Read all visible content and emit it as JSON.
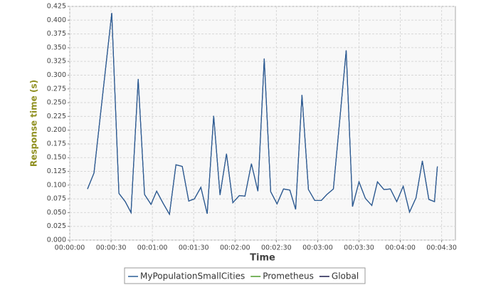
{
  "chart_data": {
    "type": "line",
    "y_label": "Response time (s)",
    "x_label": "Time",
    "x": [
      12.9,
      17.6,
      30.5,
      35.7,
      40.3,
      44.5,
      49.7,
      54.3,
      59.0,
      63.1,
      67.8,
      72.4,
      77.1,
      81.7,
      86.4,
      90.5,
      95.2,
      99.8,
      104.5,
      109.1,
      113.8,
      118.4,
      123.1,
      127.2,
      131.9,
      136.6,
      141.2,
      145.9,
      150.5,
      155.2,
      159.8,
      164.0,
      168.6,
      173.3,
      177.9,
      182.6,
      186.7,
      191.4,
      200.7,
      205.3,
      210.0,
      214.6,
      219.3,
      223.4,
      228.1,
      232.8,
      237.4,
      242.1,
      246.7,
      251.4,
      256.0,
      260.7,
      264.8,
      266.9
    ],
    "series": [
      {
        "name": "Global",
        "color": "#1a1a4a",
        "values": [
          0.093,
          0.122,
          0.413,
          0.085,
          0.07,
          0.05,
          0.293,
          0.083,
          0.065,
          0.089,
          0.067,
          0.047,
          0.137,
          0.134,
          0.071,
          0.075,
          0.096,
          0.048,
          0.226,
          0.082,
          0.157,
          0.068,
          0.081,
          0.08,
          0.139,
          0.089,
          0.33,
          0.088,
          0.066,
          0.093,
          0.091,
          0.056,
          0.264,
          0.092,
          0.072,
          0.072,
          0.083,
          0.093,
          0.345,
          0.061,
          0.106,
          0.076,
          0.063,
          0.106,
          0.092,
          0.093,
          0.07,
          0.098,
          0.051,
          0.077,
          0.144,
          0.074,
          0.07,
          0.134
        ]
      },
      {
        "name": "Prometheus",
        "color": "#4c9a2a",
        "values": [
          null,
          null,
          null,
          null,
          null,
          null,
          null,
          null,
          null,
          null,
          null,
          null,
          null,
          null,
          null,
          null,
          null,
          null,
          null,
          null,
          null,
          null,
          null,
          null,
          null,
          null,
          null,
          null,
          null,
          null,
          null,
          null,
          null,
          null,
          null,
          null,
          null,
          null,
          null,
          null,
          null,
          null,
          null,
          null,
          null,
          null,
          null,
          null,
          null,
          null,
          null,
          null,
          null,
          null
        ]
      },
      {
        "name": "MyPopulationSmallCities",
        "color": "#2a5d96",
        "values": [
          0.093,
          0.122,
          0.413,
          0.085,
          0.07,
          0.05,
          0.293,
          0.083,
          0.065,
          0.089,
          0.067,
          0.047,
          0.137,
          0.134,
          0.071,
          0.075,
          0.096,
          0.048,
          0.226,
          0.082,
          0.157,
          0.068,
          0.081,
          0.08,
          0.139,
          0.089,
          0.33,
          0.088,
          0.066,
          0.093,
          0.091,
          0.056,
          0.264,
          0.092,
          0.072,
          0.072,
          0.083,
          0.093,
          0.345,
          0.061,
          0.106,
          0.076,
          0.063,
          0.106,
          0.092,
          0.093,
          0.07,
          0.098,
          0.051,
          0.077,
          0.144,
          0.074,
          0.07,
          0.134
        ]
      }
    ],
    "legend_order": [
      2,
      1,
      0
    ],
    "xlim": [
      0,
      280
    ],
    "xticks": [
      {
        "value": 0,
        "label": "00:00:00"
      },
      {
        "value": 30,
        "label": "00:00:30"
      },
      {
        "value": 60,
        "label": "00:01:00"
      },
      {
        "value": 90,
        "label": "00:01:30"
      },
      {
        "value": 120,
        "label": "00:02:00"
      },
      {
        "value": 150,
        "label": "00:02:30"
      },
      {
        "value": 180,
        "label": "00:03:00"
      },
      {
        "value": 210,
        "label": "00:03:30"
      },
      {
        "value": 240,
        "label": "00:04:00"
      },
      {
        "value": 270,
        "label": "00:04:30"
      }
    ],
    "ylim": [
      0,
      0.425
    ],
    "yticks": [
      {
        "value": 0,
        "label": "0.000"
      },
      {
        "value": 0.025,
        "label": "0.025"
      },
      {
        "value": 0.05,
        "label": "0.050"
      },
      {
        "value": 0.075,
        "label": "0.075"
      },
      {
        "value": 0.1,
        "label": "0.100"
      },
      {
        "value": 0.125,
        "label": "0.125"
      },
      {
        "value": 0.15,
        "label": "0.150"
      },
      {
        "value": 0.175,
        "label": "0.175"
      },
      {
        "value": 0.2,
        "label": "0.200"
      },
      {
        "value": 0.225,
        "label": "0.225"
      },
      {
        "value": 0.25,
        "label": "0.250"
      },
      {
        "value": 0.275,
        "label": "0.275"
      },
      {
        "value": 0.3,
        "label": "0.300"
      },
      {
        "value": 0.325,
        "label": "0.325"
      },
      {
        "value": 0.35,
        "label": "0.350"
      },
      {
        "value": 0.375,
        "label": "0.375"
      },
      {
        "value": 0.4,
        "label": "0.400"
      },
      {
        "value": 0.425,
        "label": "0.425"
      }
    ],
    "grid": true
  }
}
